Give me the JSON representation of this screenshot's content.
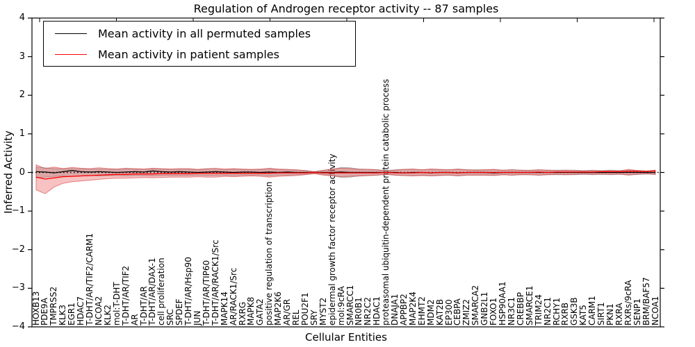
{
  "figure": {
    "title": "Regulation of Androgen receptor activity -- 87 samples",
    "xlabel": "Cellular Entities",
    "ylabel": "Inferred Activity"
  },
  "legend": {
    "items": [
      {
        "label": "Mean activity in all permuted samples",
        "color": "#000000"
      },
      {
        "label": "Mean activity in patient samples",
        "color": "#ff0000"
      }
    ]
  },
  "axes": {
    "yticks": [
      "4",
      "3",
      "2",
      "1",
      "0",
      "−1",
      "−2",
      "−3",
      "−4"
    ]
  },
  "chart_data": {
    "type": "line",
    "title": "Regulation of Androgen receptor activity -- 87 samples",
    "xlabel": "Cellular Entities",
    "ylabel": "Inferred Activity",
    "ylim": [
      -4,
      4
    ],
    "grid": false,
    "legend_position": "upper left",
    "zero_line": {
      "style": "dotted",
      "color": "#000000",
      "y": 0
    },
    "categories": [
      "HOXB13",
      "PDE9A",
      "TMPRSS2",
      "KLK3",
      "EGR1",
      "HDAC7",
      "T-DHT/AR/TIF2/CARM1",
      "NCOA2",
      "KLK2",
      "mol:T-DHT",
      "T-DHT/AR/TIF2",
      "AR",
      "T-DHT/AR",
      "T-DHT/AR/DAX-1",
      "cell proliferation",
      "SRC",
      "SPDEF",
      "T-DHT/AR/Hsp90",
      "JUN",
      "T-DHT/AR/TIP60",
      "T-DHT/AR/RACK1/Src",
      "MAPK14",
      "AR/RACK1/Src",
      "RXRG",
      "MAPK8",
      "GATA2",
      "positive regulation of transcription",
      "MAP2K6",
      "AR/GR",
      "REL",
      "POU2F1",
      "SRY",
      "MYST2",
      "epidermal growth factor receptor activity",
      "mol:9cRA",
      "SMARCC1",
      "NR0B1",
      "NR2C2",
      "HDAC1",
      "proteasomal ubiquitin-dependent protein catabolic process",
      "DNAJA1",
      "APPBP2",
      "MAP2K4",
      "EHMT2",
      "MDM2",
      "KAT2B",
      "EP300",
      "CEBPA",
      "ZMIZ2",
      "SMARCA2",
      "GNB2L1",
      "FOXO1",
      "HSP90AA1",
      "NR3C1",
      "CREBBP",
      "SMARCE1",
      "TRIM24",
      "NR2C1",
      "RCHY1",
      "RXRB",
      "GSK3B",
      "KAT5",
      "CARM1",
      "SIRT1",
      "PKN1",
      "RXRA",
      "RXRs/9cRA",
      "SENP1",
      "BRM/BAF57",
      "NCOA1"
    ],
    "series": [
      {
        "name": "Mean activity in all permuted samples",
        "color": "#000000",
        "values": [
          0.02,
          0.01,
          -0.01,
          0.02,
          0.05,
          0.02,
          0.01,
          0.02,
          0.01,
          0.0,
          0.01,
          0.02,
          0.01,
          0.04,
          0.02,
          0.01,
          0.02,
          0.01,
          0.0,
          0.01,
          0.02,
          0.01,
          0.0,
          0.01,
          0.01,
          0.0,
          0.01,
          0.0,
          0.01,
          0.0,
          0.0,
          0.0,
          0.0,
          0.0,
          0.01,
          0.0,
          0.0,
          0.0,
          0.0,
          0.0,
          0.0,
          -0.01,
          0.0,
          0.0,
          -0.01,
          0.0,
          0.0,
          -0.01,
          0.0,
          0.0,
          0.0,
          -0.01,
          0.0,
          0.0,
          0.0,
          0.0,
          0.0,
          0.0,
          0.0,
          0.0,
          0.0,
          0.0,
          0.0,
          0.0,
          0.0,
          0.0,
          0.0,
          0.0,
          0.0,
          0.0
        ]
      },
      {
        "name": "Mean activity in patient samples",
        "color": "#ff0000",
        "values": [
          -0.12,
          -0.17,
          -0.14,
          -0.11,
          -0.1,
          -0.09,
          -0.08,
          -0.07,
          -0.06,
          -0.05,
          -0.05,
          -0.04,
          -0.04,
          -0.04,
          -0.03,
          -0.03,
          -0.03,
          -0.03,
          -0.02,
          -0.02,
          -0.02,
          -0.02,
          -0.02,
          -0.02,
          -0.02,
          -0.02,
          -0.02,
          -0.01,
          -0.01,
          -0.01,
          -0.01,
          0.0,
          -0.01,
          -0.01,
          -0.01,
          -0.01,
          -0.01,
          -0.01,
          -0.01,
          0.0,
          -0.01,
          -0.01,
          -0.01,
          0.0,
          -0.01,
          0.0,
          0.0,
          -0.01,
          0.0,
          0.0,
          0.0,
          0.0,
          0.0,
          0.0,
          0.0,
          0.0,
          0.01,
          0.0,
          0.01,
          0.01,
          0.01,
          0.01,
          0.01,
          0.02,
          0.02,
          0.02,
          0.03,
          0.03,
          0.03,
          0.04
        ]
      }
    ],
    "bands": [
      {
        "name": "permuted-samples-range",
        "color": "#8c8c8c",
        "edge": "#787878",
        "opacity": 0.35,
        "upper": [
          0.14,
          0.12,
          0.1,
          0.09,
          0.1,
          0.09,
          0.08,
          0.09,
          0.08,
          0.08,
          0.09,
          0.08,
          0.08,
          0.09,
          0.08,
          0.08,
          0.08,
          0.08,
          0.07,
          0.08,
          0.08,
          0.07,
          0.08,
          0.07,
          0.07,
          0.07,
          0.09,
          0.07,
          0.07,
          0.06,
          0.05,
          0.02,
          0.05,
          0.08,
          0.13,
          0.12,
          0.09,
          0.08,
          0.07,
          0.05,
          0.07,
          0.08,
          0.08,
          0.07,
          0.08,
          0.07,
          0.07,
          0.08,
          0.07,
          0.07,
          0.07,
          0.07,
          0.06,
          0.07,
          0.06,
          0.06,
          0.07,
          0.06,
          0.06,
          0.06,
          0.06,
          0.05,
          0.06,
          0.05,
          0.06,
          0.05,
          0.06,
          0.05,
          0.04,
          0.05
        ],
        "lower": [
          -0.14,
          -0.12,
          -0.1,
          -0.09,
          -0.1,
          -0.09,
          -0.08,
          -0.09,
          -0.08,
          -0.08,
          -0.09,
          -0.08,
          -0.08,
          -0.09,
          -0.08,
          -0.08,
          -0.08,
          -0.08,
          -0.07,
          -0.08,
          -0.08,
          -0.07,
          -0.08,
          -0.07,
          -0.07,
          -0.07,
          -0.09,
          -0.07,
          -0.07,
          -0.06,
          -0.05,
          -0.02,
          -0.05,
          -0.08,
          -0.13,
          -0.12,
          -0.09,
          -0.08,
          -0.07,
          -0.05,
          -0.07,
          -0.08,
          -0.08,
          -0.07,
          -0.08,
          -0.07,
          -0.07,
          -0.08,
          -0.07,
          -0.07,
          -0.07,
          -0.07,
          -0.06,
          -0.07,
          -0.06,
          -0.06,
          -0.07,
          -0.06,
          -0.06,
          -0.06,
          -0.06,
          -0.05,
          -0.06,
          -0.05,
          -0.06,
          -0.05,
          -0.06,
          -0.05,
          -0.04,
          -0.05
        ]
      },
      {
        "name": "patient-samples-range",
        "color": "#e84040",
        "edge": "#d23030",
        "opacity": 0.32,
        "upper": [
          0.2,
          0.1,
          0.14,
          0.1,
          0.13,
          0.11,
          0.1,
          0.12,
          0.1,
          0.09,
          0.11,
          0.1,
          0.09,
          0.11,
          0.1,
          0.09,
          0.1,
          0.1,
          0.08,
          0.1,
          0.11,
          0.09,
          0.1,
          0.09,
          0.08,
          0.09,
          0.11,
          0.09,
          0.08,
          0.07,
          0.05,
          0.02,
          0.06,
          0.09,
          0.11,
          0.1,
          0.08,
          0.08,
          0.07,
          0.04,
          0.06,
          0.08,
          0.09,
          0.07,
          0.09,
          0.08,
          0.07,
          0.09,
          0.07,
          0.06,
          0.07,
          0.08,
          0.06,
          0.07,
          0.06,
          0.05,
          0.07,
          0.06,
          0.05,
          0.06,
          0.05,
          0.04,
          0.05,
          0.04,
          0.05,
          0.04,
          0.08,
          0.05,
          0.03,
          0.06
        ],
        "lower": [
          -0.45,
          -0.55,
          -0.38,
          -0.28,
          -0.24,
          -0.22,
          -0.2,
          -0.18,
          -0.16,
          -0.15,
          -0.15,
          -0.14,
          -0.13,
          -0.14,
          -0.13,
          -0.12,
          -0.12,
          -0.12,
          -0.11,
          -0.12,
          -0.12,
          -0.1,
          -0.11,
          -0.1,
          -0.09,
          -0.1,
          -0.12,
          -0.1,
          -0.09,
          -0.08,
          -0.06,
          -0.03,
          -0.07,
          -0.09,
          -0.11,
          -0.1,
          -0.09,
          -0.08,
          -0.07,
          -0.05,
          -0.07,
          -0.08,
          -0.09,
          -0.08,
          -0.09,
          -0.08,
          -0.07,
          -0.09,
          -0.07,
          -0.07,
          -0.07,
          -0.08,
          -0.06,
          -0.07,
          -0.06,
          -0.06,
          -0.07,
          -0.06,
          -0.05,
          -0.06,
          -0.05,
          -0.04,
          -0.05,
          -0.04,
          -0.05,
          -0.04,
          -0.07,
          -0.05,
          -0.03,
          -0.05
        ]
      }
    ]
  }
}
